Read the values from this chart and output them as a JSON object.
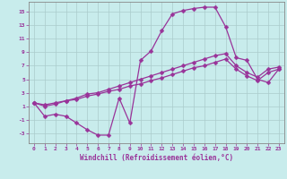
{
  "xlabel": "Windchill (Refroidissement éolien,°C)",
  "bg_color": "#c8ecec",
  "line_color": "#993399",
  "grid_color": "#aacccc",
  "xlim": [
    -0.5,
    23.5
  ],
  "ylim": [
    -4.5,
    16.5
  ],
  "xticks": [
    0,
    1,
    2,
    3,
    4,
    5,
    6,
    7,
    8,
    9,
    10,
    11,
    12,
    13,
    14,
    15,
    16,
    17,
    18,
    19,
    20,
    21,
    22,
    23
  ],
  "yticks": [
    -3,
    -1,
    1,
    3,
    5,
    7,
    9,
    11,
    13,
    15
  ],
  "line1_x": [
    0,
    1,
    2,
    3,
    4,
    5,
    6,
    7,
    8,
    9,
    10,
    11,
    12,
    13,
    14,
    15,
    16,
    17,
    18,
    19,
    20,
    21,
    22,
    23
  ],
  "line1_y": [
    1.5,
    -0.5,
    -0.2,
    -0.5,
    -1.5,
    -2.5,
    -3.3,
    -3.3,
    2.2,
    -1.5,
    7.8,
    9.2,
    12.2,
    14.7,
    15.2,
    15.5,
    15.7,
    15.7,
    12.8,
    8.2,
    7.8,
    5.0,
    4.5,
    6.5
  ],
  "line2_x": [
    0,
    1,
    2,
    3,
    4,
    5,
    6,
    7,
    8,
    9,
    10,
    11,
    12,
    13,
    14,
    15,
    16,
    17,
    18,
    19,
    20,
    21,
    22,
    23
  ],
  "line2_y": [
    1.5,
    1.2,
    1.5,
    1.8,
    2.0,
    2.5,
    2.8,
    3.2,
    3.5,
    4.0,
    4.3,
    4.8,
    5.2,
    5.7,
    6.2,
    6.7,
    7.0,
    7.5,
    8.0,
    6.5,
    5.5,
    4.8,
    6.0,
    6.5
  ],
  "line3_x": [
    0,
    1,
    2,
    3,
    4,
    5,
    6,
    7,
    8,
    9,
    10,
    11,
    12,
    13,
    14,
    15,
    16,
    17,
    18,
    19,
    20,
    21,
    22,
    23
  ],
  "line3_y": [
    1.5,
    1.0,
    1.3,
    1.8,
    2.2,
    2.8,
    3.0,
    3.5,
    4.0,
    4.5,
    5.0,
    5.5,
    6.0,
    6.5,
    7.0,
    7.5,
    8.0,
    8.5,
    8.8,
    7.0,
    6.0,
    5.3,
    6.5,
    6.8
  ],
  "marker": "D",
  "markersize": 2.5,
  "linewidth": 0.9,
  "tick_fontsize": 4.5,
  "label_fontsize": 5.5
}
